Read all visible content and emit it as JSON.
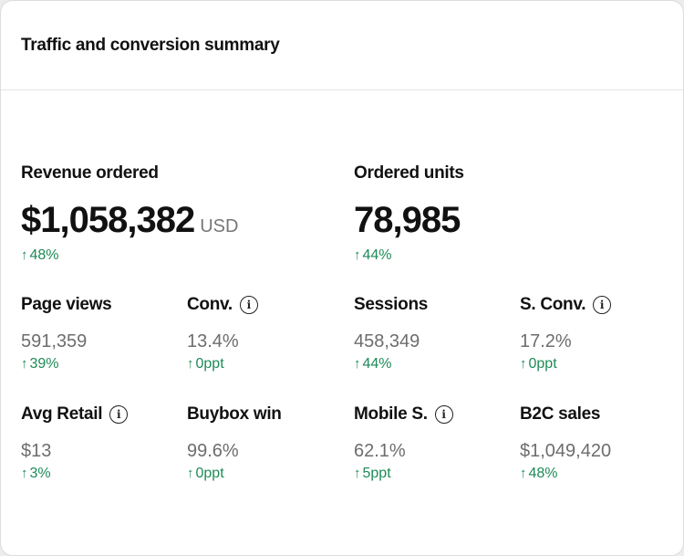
{
  "header": {
    "title": "Traffic and conversion summary"
  },
  "primary_metrics": [
    {
      "label": "Revenue ordered",
      "value": "$1,058,382",
      "unit": "USD",
      "delta_arrow": "↑",
      "delta": "48%"
    },
    {
      "label": "Ordered units",
      "value": "78,985",
      "unit": "",
      "delta_arrow": "↑",
      "delta": "44%"
    }
  ],
  "metrics": [
    {
      "label": "Page views",
      "value": "591,359",
      "delta_arrow": "↑",
      "delta": "39%",
      "info_icon": false
    },
    {
      "label": "Conv.",
      "value": "13.4%",
      "delta_arrow": "↑",
      "delta": "0ppt",
      "info_icon": true
    },
    {
      "label": "Sessions",
      "value": "458,349",
      "delta_arrow": "↑",
      "delta": "44%",
      "info_icon": false
    },
    {
      "label": "S. Conv.",
      "value": "17.2%",
      "delta_arrow": "↑",
      "delta": "0ppt",
      "info_icon": true
    },
    {
      "label": "Avg Retail",
      "value": "$13",
      "delta_arrow": "↑",
      "delta": "3%",
      "info_icon": true
    },
    {
      "label": "Buybox win",
      "value": "99.6%",
      "delta_arrow": "↑",
      "delta": "0ppt",
      "info_icon": false
    },
    {
      "label": "Mobile S.",
      "value": "62.1%",
      "delta_arrow": "↑",
      "delta": "5ppt",
      "info_icon": true
    },
    {
      "label": "B2C sales",
      "value": "$1,049,420",
      "delta_arrow": "↑",
      "delta": "48%",
      "info_icon": false
    }
  ],
  "info_icon": {
    "name": "info-circle-icon",
    "glyph": "i"
  },
  "colors": {
    "positive_delta": "#1e8a57",
    "value_text": "#6d6d6d",
    "label_text": "#111111"
  }
}
